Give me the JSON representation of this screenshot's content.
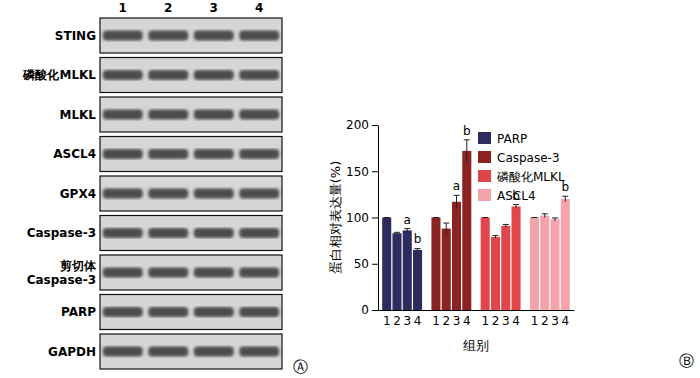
{
  "chart_data": {
    "type": "bar",
    "y_label": "蛋白相对表达量(%)",
    "x_label": "组别",
    "categories": [
      "1",
      "2",
      "3",
      "4"
    ],
    "series": [
      {
        "name": "PARP",
        "color": "#2e2b5f",
        "values": [
          100,
          83,
          86,
          65
        ],
        "errors": [
          0,
          1,
          2,
          1.5
        ],
        "significance": [
          null,
          null,
          "a",
          "b"
        ]
      },
      {
        "name": "Caspase-3",
        "color": "#8c2323",
        "values": [
          100,
          88,
          117,
          172
        ],
        "errors": [
          0,
          6,
          7,
          12
        ],
        "significance": [
          null,
          null,
          "a",
          "b"
        ]
      },
      {
        "name": "磷酸化MLKL",
        "color": "#e0464a",
        "values": [
          100,
          79,
          91,
          112
        ],
        "errors": [
          0,
          1.5,
          1.5,
          2
        ],
        "significance": [
          null,
          null,
          null,
          "b"
        ]
      },
      {
        "name": "ASCL4",
        "color": "#f4a3ab",
        "values": [
          100,
          102,
          98,
          120
        ],
        "errors": [
          0,
          2,
          1.5,
          3
        ],
        "significance": [
          null,
          null,
          null,
          "b"
        ]
      }
    ],
    "ylim": [
      0,
      200
    ],
    "yticks": [
      0,
      50,
      100,
      150,
      200
    ],
    "legend": "upper right",
    "grid": false
  },
  "blot": {
    "lanes": [
      "1",
      "2",
      "3",
      "4"
    ],
    "rows": [
      [
        "STING"
      ],
      [
        "磷酸化MLKL"
      ],
      [
        "MLKL"
      ],
      [
        "ASCL4"
      ],
      [
        "GPX4"
      ],
      [
        "Caspase-3"
      ],
      [
        "剪切体",
        "Caspase-3"
      ],
      [
        "PARP"
      ],
      [
        "GAPDH"
      ]
    ]
  },
  "panel_labels": [
    "Ⓐ",
    "Ⓑ"
  ]
}
